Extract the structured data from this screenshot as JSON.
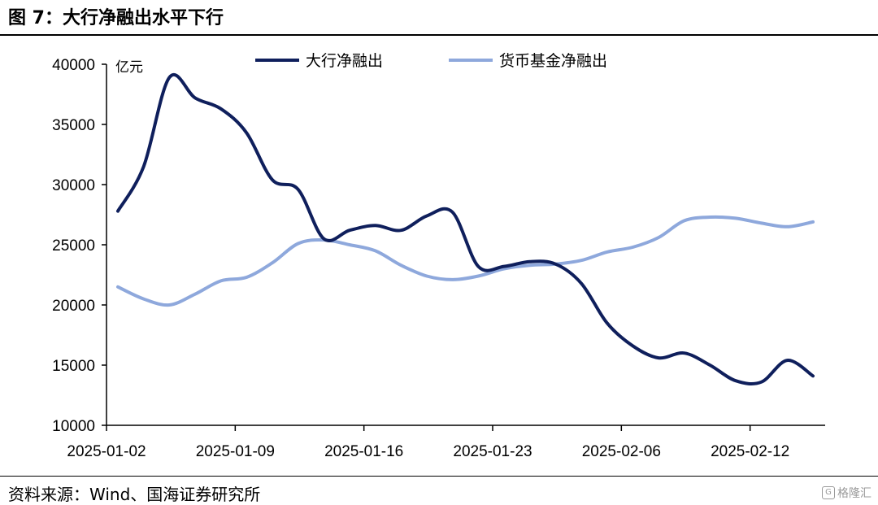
{
  "title": "图 7：大行净融出水平下行",
  "source": "资料来源：Wind、国海证券研究所",
  "watermark": "格隆汇",
  "chart_data": {
    "type": "line",
    "title": "",
    "xlabel": "",
    "ylabel": "亿元",
    "ylim": [
      10000,
      40000
    ],
    "yticks": [
      10000,
      15000,
      20000,
      25000,
      30000,
      35000,
      40000
    ],
    "x": [
      "2025-01-02",
      "2025-01-03",
      "2025-01-06",
      "2025-01-07",
      "2025-01-08",
      "2025-01-09",
      "2025-01-10",
      "2025-01-13",
      "2025-01-14",
      "2025-01-15",
      "2025-01-16",
      "2025-01-17",
      "2025-01-20",
      "2025-01-21",
      "2025-01-22",
      "2025-01-23",
      "2025-01-24",
      "2025-01-26",
      "2025-01-27",
      "2025-02-05",
      "2025-02-06",
      "2025-02-07",
      "2025-02-08",
      "2025-02-10",
      "2025-02-11",
      "2025-02-12",
      "2025-02-13",
      "2025-02-14"
    ],
    "xtick_labels": [
      "2025-01-02",
      "2025-01-09",
      "2025-01-16",
      "2025-01-23",
      "2025-02-06",
      "2025-02-12"
    ],
    "legend_position": "top",
    "grid": false,
    "series": [
      {
        "name": "大行净融出",
        "color": "#0f1f5c",
        "values": [
          27800,
          31500,
          38900,
          37200,
          36300,
          34300,
          30400,
          29600,
          25500,
          26200,
          26600,
          26200,
          27400,
          27700,
          23200,
          23200,
          23600,
          23400,
          21800,
          18500,
          16600,
          15600,
          16000,
          15000,
          13700,
          13600,
          15400,
          14100
        ]
      },
      {
        "name": "货币基金净融出",
        "color": "#8ea8dc",
        "values": [
          21500,
          20500,
          20000,
          20900,
          22000,
          22300,
          23500,
          25100,
          25400,
          25000,
          24500,
          23300,
          22400,
          22100,
          22400,
          23000,
          23300,
          23400,
          23700,
          24400,
          24800,
          25600,
          27000,
          27300,
          27200,
          26800,
          26500,
          26900
        ]
      }
    ]
  }
}
